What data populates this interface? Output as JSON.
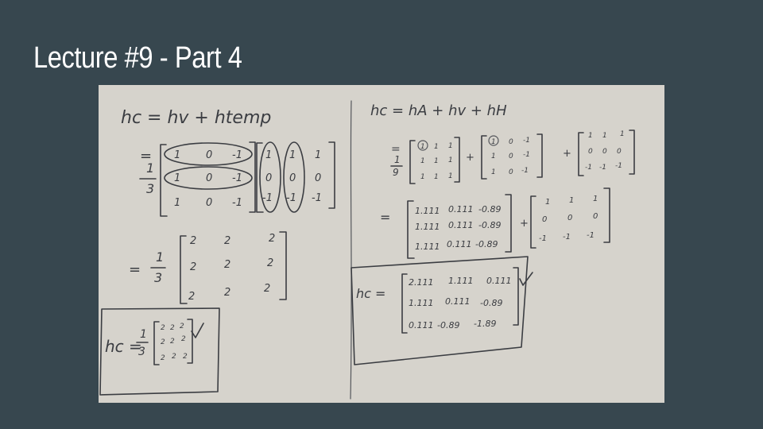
{
  "slide": {
    "title": "Lecture #9 - Part 4",
    "background_color": "#37474f",
    "title_color": "#ffffff"
  },
  "whiteboard": {
    "left": {
      "eq1": "hc = hv + htemp",
      "frac_num": "1",
      "frac_den": "3",
      "m1": [
        [
          "1",
          "0",
          "-1"
        ],
        [
          "1",
          "0",
          "-1"
        ],
        [
          "1",
          "0",
          "-1"
        ]
      ],
      "m2": [
        [
          "1",
          "1",
          "1"
        ],
        [
          "0",
          "0",
          "0"
        ],
        [
          "-1",
          "-1",
          "-1"
        ]
      ],
      "result_matrix": [
        [
          "2",
          "2",
          "2"
        ],
        [
          "2",
          "2",
          "2"
        ],
        [
          "2",
          "2",
          "2"
        ]
      ],
      "boxed_label": "hc =",
      "boxed_matrix": [
        [
          "2",
          "2",
          "2"
        ],
        [
          "2",
          "2",
          "2"
        ],
        [
          "2",
          "2",
          "2"
        ]
      ]
    },
    "right": {
      "eq1": "hc = hA + hv + hH",
      "frac_num": "1",
      "frac_den": "9",
      "mA": [
        [
          "1",
          "1",
          "1"
        ],
        [
          "1",
          "1",
          "1"
        ],
        [
          "1",
          "1",
          "1"
        ]
      ],
      "mV": [
        [
          "1",
          "0",
          "-1"
        ],
        [
          "1",
          "0",
          "-1"
        ],
        [
          "1",
          "0",
          "-1"
        ]
      ],
      "mH": [
        [
          "1",
          "1",
          "1"
        ],
        [
          "0",
          "0",
          "0"
        ],
        [
          "-1",
          "-1",
          "-1"
        ]
      ],
      "sum_matrix": [
        [
          "1.111",
          "0.111",
          "-0.89"
        ],
        [
          "1.111",
          "0.111",
          "-0.89"
        ],
        [
          "1.111",
          "0.111",
          "-0.89"
        ]
      ],
      "plus_matrix": [
        [
          "1",
          "1",
          "1"
        ],
        [
          "0",
          "0",
          "0"
        ],
        [
          "-1",
          "-1",
          "-1"
        ]
      ],
      "boxed_label": "hc =",
      "boxed_matrix": [
        [
          "2.111",
          "1.111",
          "0.111"
        ],
        [
          "1.111",
          "0.111",
          "-0.89"
        ],
        [
          "0.111",
          "-0.89",
          "-1.89"
        ]
      ]
    }
  }
}
